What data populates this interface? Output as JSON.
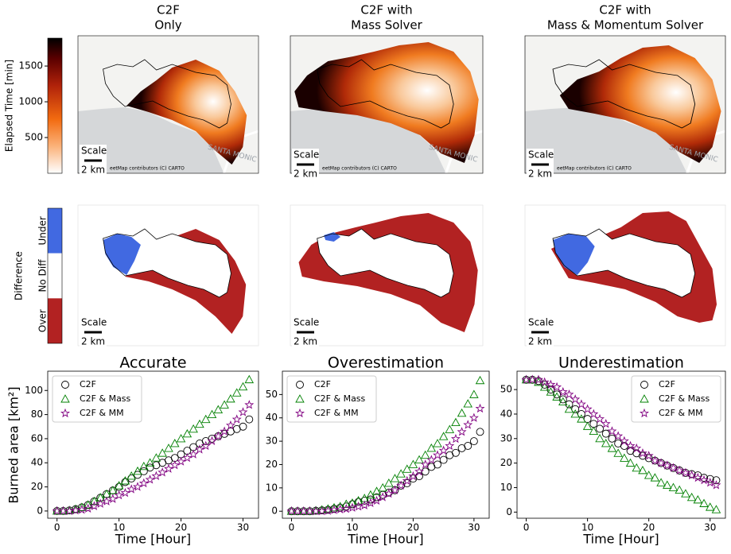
{
  "maps": {
    "titles": [
      [
        "C2F",
        "Only"
      ],
      [
        "C2F with",
        "Mass Solver"
      ],
      [
        "C2F with",
        "Mass & Momentum Solver"
      ]
    ],
    "elapsed_colorbar": {
      "label": "Elapsed Time [min]",
      "lim": [
        0,
        1890
      ],
      "ticks": [
        500,
        1000,
        1500
      ]
    },
    "difference_colorbar": {
      "label": "Difference",
      "categories": [
        "Under",
        "No Diff",
        "Over"
      ],
      "colors": [
        "#4169e1",
        "#ffffff",
        "#b22222"
      ]
    },
    "scale_label": "Scale",
    "scale_distance": "2 km",
    "attribution": "eetMap contributors (C) CARTO",
    "place_label": "SANTA MONIC"
  },
  "chart_data": [
    {
      "type": "scatter",
      "title": "Accurate",
      "xlabel": "Time [Hour]",
      "ylabel": "Burned area [km²]",
      "legend": "upper left",
      "x": [
        0,
        1,
        2,
        3,
        4,
        5,
        6,
        7,
        8,
        9,
        10,
        11,
        12,
        13,
        14,
        15,
        16,
        17,
        18,
        19,
        20,
        21,
        22,
        23,
        24,
        25,
        26,
        27,
        28,
        29,
        30,
        31
      ],
      "xlim": [
        -1.5,
        32.5
      ],
      "xticks": [
        0,
        10,
        20,
        30
      ],
      "ylim": [
        -6,
        116
      ],
      "yticks": [
        0,
        20,
        40,
        60,
        80,
        100
      ],
      "series": [
        {
          "name": "C2F",
          "color": "#000000",
          "marker": "circle",
          "values": [
            0,
            0,
            0.5,
            1.5,
            3,
            5,
            8,
            11,
            14,
            17,
            20,
            24,
            27,
            30,
            33,
            36,
            38,
            40,
            42,
            44,
            47,
            50,
            53,
            56,
            58,
            60,
            62,
            64,
            66,
            68,
            70,
            76
          ]
        },
        {
          "name": "C2F & Mass",
          "color": "#008000",
          "marker": "triangle",
          "values": [
            0,
            0,
            0.5,
            1.5,
            3,
            5,
            8,
            11,
            14,
            17,
            21,
            25,
            29,
            33,
            37,
            40,
            44,
            48,
            52,
            56,
            60,
            64,
            68,
            72,
            76,
            80,
            84,
            88,
            93,
            98,
            103,
            109
          ]
        },
        {
          "name": "C2F & MM",
          "color": "#800080",
          "marker": "star",
          "values": [
            0,
            0,
            0,
            0.5,
            1,
            2,
            4,
            6,
            8,
            10,
            13,
            15,
            18,
            20,
            23,
            26,
            29,
            32,
            35,
            38,
            41,
            44,
            47,
            51,
            54,
            58,
            62,
            66,
            71,
            76,
            82,
            88
          ]
        }
      ]
    },
    {
      "type": "scatter",
      "title": "Overestimation",
      "xlabel": "Time [Hour]",
      "legend": "upper left",
      "x": [
        0,
        1,
        2,
        3,
        4,
        5,
        6,
        7,
        8,
        9,
        10,
        11,
        12,
        13,
        14,
        15,
        16,
        17,
        18,
        19,
        20,
        21,
        22,
        23,
        24,
        25,
        26,
        27,
        28,
        29,
        30,
        31
      ],
      "xlim": [
        -1.5,
        32.5
      ],
      "xticks": [
        0,
        10,
        20,
        30
      ],
      "ylim": [
        -3,
        60
      ],
      "yticks": [
        0,
        10,
        20,
        30,
        40,
        50
      ],
      "series": [
        {
          "name": "C2F",
          "color": "#000000",
          "marker": "circle",
          "values": [
            0,
            0,
            0,
            0,
            0.2,
            0.4,
            0.6,
            1,
            1.5,
            2,
            3,
            4,
            4.5,
            5,
            6,
            7,
            8,
            9,
            11,
            12,
            14,
            15,
            17,
            19,
            20,
            22,
            24,
            25,
            27,
            28,
            30,
            34
          ]
        },
        {
          "name": "C2F & Mass",
          "color": "#008000",
          "marker": "triangle",
          "values": [
            0,
            0,
            0,
            0,
            0.3,
            0.6,
            1,
            1.5,
            2,
            3,
            3.5,
            4.5,
            5.5,
            7,
            8.5,
            10,
            12,
            14,
            16,
            18,
            20,
            22,
            24,
            27,
            29,
            32,
            35,
            38,
            42,
            46,
            50,
            56
          ]
        },
        {
          "name": "C2F & MM",
          "color": "#800080",
          "marker": "star",
          "values": [
            0,
            0,
            0,
            0,
            0,
            0,
            0.2,
            0.5,
            0.8,
            1,
            1.5,
            2,
            2.5,
            3.5,
            4.5,
            6,
            7.5,
            9,
            11,
            13,
            15,
            17,
            20,
            22,
            24,
            26,
            28,
            31,
            34,
            37,
            40,
            44
          ]
        }
      ]
    },
    {
      "type": "scatter",
      "title": "Underestimation",
      "xlabel": "Time [Hour]",
      "legend": "upper right",
      "x": [
        0,
        1,
        2,
        3,
        4,
        5,
        6,
        7,
        8,
        9,
        10,
        11,
        12,
        13,
        14,
        15,
        16,
        17,
        18,
        19,
        20,
        21,
        22,
        23,
        24,
        25,
        26,
        27,
        28,
        29,
        30,
        31
      ],
      "xlim": [
        -1.5,
        32.5
      ],
      "xticks": [
        0,
        10,
        20,
        30
      ],
      "ylim": [
        -2.5,
        57.5
      ],
      "yticks": [
        0,
        10,
        20,
        30,
        40,
        50
      ],
      "series": [
        {
          "name": "C2F",
          "color": "#000000",
          "marker": "circle",
          "values": [
            54,
            54,
            53.5,
            52,
            50,
            48,
            46,
            44,
            42,
            40,
            38,
            36,
            34,
            32,
            30,
            28,
            27,
            25,
            24,
            23,
            22,
            21,
            20,
            19,
            18,
            17,
            16,
            15.5,
            15,
            14,
            13.5,
            13
          ]
        },
        {
          "name": "C2F & Mass",
          "color": "#008000",
          "marker": "triangle",
          "values": [
            54,
            54,
            53,
            51,
            49,
            47,
            45,
            42,
            40,
            38,
            35,
            33,
            30,
            28,
            26,
            24,
            22,
            20,
            18,
            17,
            15,
            14,
            12,
            11,
            10,
            9,
            7.5,
            6,
            5,
            3.5,
            2,
            1
          ]
        },
        {
          "name": "C2F & MM",
          "color": "#800080",
          "marker": "star",
          "values": [
            54,
            54,
            54,
            53,
            52,
            51,
            49,
            48,
            46,
            44,
            42,
            40,
            38,
            36,
            33,
            31,
            29,
            27,
            26,
            24,
            23,
            21,
            20,
            19,
            18,
            17,
            16,
            15,
            14,
            13,
            12,
            11
          ]
        }
      ]
    }
  ]
}
